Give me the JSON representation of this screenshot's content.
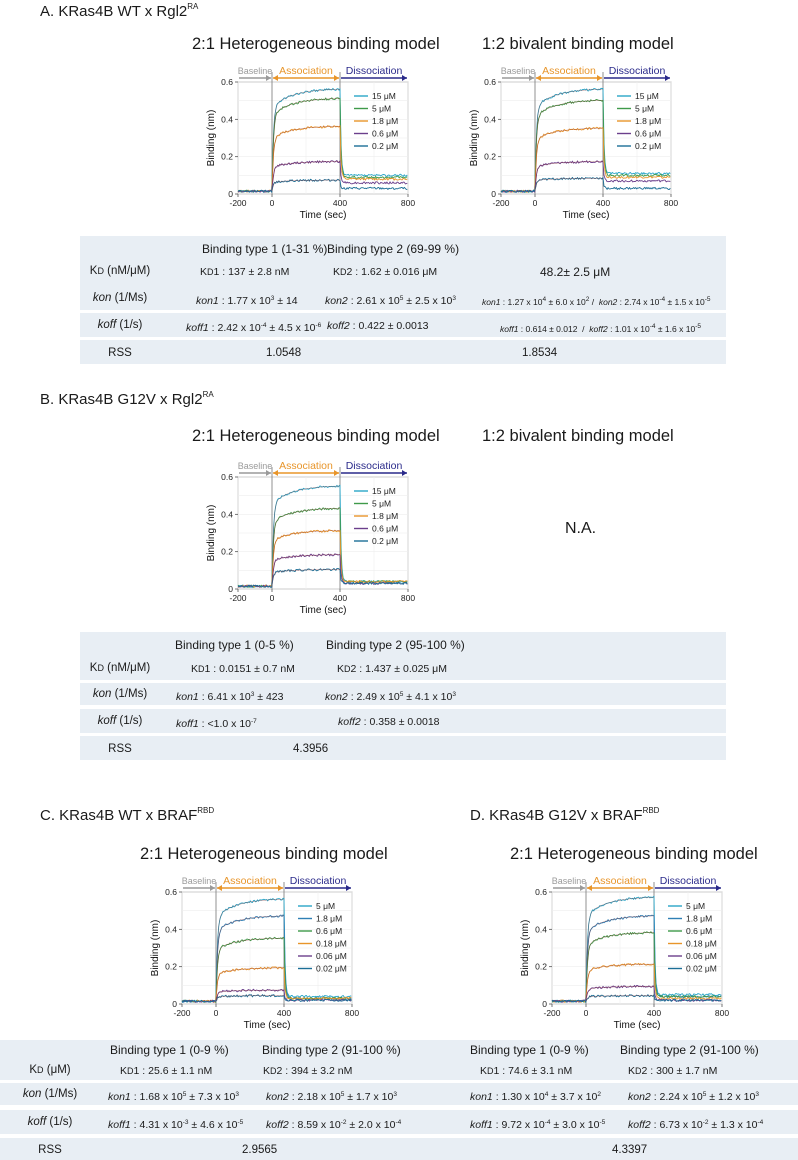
{
  "panels": [
    {
      "id": "A",
      "title": "A. KRas4B WT x Rgl2",
      "title_sup": "RA",
      "models": [
        "2:1 Heterogeneous binding model",
        "1:2 bivalent binding model"
      ],
      "na_text": "",
      "table": {
        "headers": [
          "Binding type 1 (1-31 %)",
          "Binding type 2 (69-99 %)"
        ],
        "rows": [
          {
            "label": "KD (nM/μM)",
            "cells": [
              "KD1 : 137 ± 2.8 nM",
              "KD2 : 1.62 ± 0.016 μM",
              "48.2± 2.5 μM"
            ]
          },
          {
            "label": "kon (1/Ms)",
            "cells": [
              "kon1 : 1.77 x 10³ ± 14",
              "kon2 : 2.61 x 10⁵ ± 2.5 x 10³",
              "kon1 : 1.27 x 10⁴ ± 6.0 x 10² /  kon2 : 2.74 x 10⁻⁴ ± 1.5 x 10⁻⁵"
            ]
          },
          {
            "label": "koff (1/s)",
            "cells": [
              "koff1 : 2.42 x 10⁻⁴ ± 4.5 x 10⁻⁶",
              "koff2 : 0.422 ± 0.0013",
              "koff1 : 0.614 ± 0.012  /  koff2 : 1.01 x 10⁻⁴ ± 1.6 x 10⁻⁵"
            ]
          },
          {
            "label": "RSS",
            "cells": [
              "1.0548",
              "1.8534"
            ]
          }
        ]
      }
    },
    {
      "id": "B",
      "title": "B. KRas4B G12V x Rgl2",
      "title_sup": "RA",
      "models": [
        "2:1 Heterogeneous binding model",
        "1:2 bivalent binding model"
      ],
      "na_text": "N.A.",
      "table": {
        "headers": [
          "Binding type 1 (0-5 %)",
          "Binding type 2 (95-100 %)"
        ],
        "rows": [
          {
            "label": "KD (nM/μM)",
            "cells": [
              "KD1 : 0.0151 ± 0.7 nM",
              "KD2 : 1.437 ± 0.025 μM"
            ]
          },
          {
            "label": "kon (1/Ms)",
            "cells": [
              "kon1 : 6.41 x 10³ ± 423",
              "kon2 : 2.49 x 10⁵ ± 4.1 x 10³"
            ]
          },
          {
            "label": "koff (1/s)",
            "cells": [
              "koff1 : <1.0 x 10⁻⁷",
              "koff2 : 0.358 ± 0.0018"
            ]
          },
          {
            "label": "RSS",
            "cells": [
              "4.3956"
            ]
          }
        ]
      }
    },
    {
      "id": "C",
      "title": "C. KRas4B WT x BRAF",
      "title_sup": "RBD",
      "models": [
        "2:1 Heterogeneous binding model"
      ],
      "table": {
        "headers": [
          "Binding type 1 (0-9 %)",
          "Binding type 2 (91-100 %)"
        ],
        "rows": [
          {
            "label": "KD (μM)",
            "cells": [
              "KD1 : 25.6 ± 1.1 nM",
              "KD2 : 394 ± 3.2 nM"
            ]
          },
          {
            "label": "kon (1/Ms)",
            "cells": [
              "kon1 : 1.68 x 10⁵ ± 7.3 x 10³",
              "kon2 : 2.18 x 10⁵ ± 1.7 x 10³"
            ]
          },
          {
            "label": "koff (1/s)",
            "cells": [
              "koff1 : 4.31 x 10⁻³ ± 4.6 x 10⁻⁵",
              "koff2 : 8.59 x 10⁻² ± 2.0 x 10⁻⁴"
            ]
          },
          {
            "label": "RSS",
            "cells": [
              "2.9565"
            ]
          }
        ]
      }
    },
    {
      "id": "D",
      "title": "D. KRas4B G12V x BRAF",
      "title_sup": "RBD",
      "models": [
        "2:1 Heterogeneous binding model"
      ],
      "table": {
        "headers": [
          "Binding type 1 (0-9 %)",
          "Binding type 2 (91-100 %)"
        ],
        "rows": [
          {
            "label": "",
            "cells": [
              "KD1 : 74.6 ± 3.1 nM",
              "KD2 : 300 ± 1.7 nM"
            ]
          },
          {
            "label": "",
            "cells": [
              "kon1 : 1.30 x 10⁴ ± 3.7 x 10²",
              "kon2 : 2.24 x 10⁵ ± 1.2 x 10³"
            ]
          },
          {
            "label": "",
            "cells": [
              "koff1 : 9.72 x 10⁻⁴ ± 3.0 x 10⁻⁵",
              "koff2 : 6.73 x 10⁻² ± 1.3 x 10⁻⁴"
            ]
          },
          {
            "label": "",
            "cells": [
              "4.3397"
            ]
          }
        ]
      }
    }
  ],
  "chart_data": [
    {
      "type": "line",
      "panel": "A",
      "model": "2:1 Heterogeneous binding model",
      "xlabel": "Time (sec)",
      "ylabel": "Binding (nm)",
      "xlim": [
        -200,
        800
      ],
      "ylim": [
        0,
        0.6
      ],
      "xticks": [
        "-200",
        "0",
        "400",
        "800"
      ],
      "yticks": [
        "0",
        "0.2",
        "0.4",
        "0.6"
      ],
      "phases": [
        "Baseline",
        "Association",
        "Dissociation"
      ],
      "legend_position": "right",
      "series": [
        {
          "name": "15 μM",
          "color": "#2aa6c8",
          "plateau": 0.55,
          "end_assoc": 0.55,
          "end": 0.1
        },
        {
          "name": "5 μM",
          "color": "#3f9a4a",
          "plateau": 0.5,
          "end_assoc": 0.5,
          "end": 0.09
        },
        {
          "name": "1.8 μM",
          "color": "#e8952a",
          "plateau": 0.35,
          "end_assoc": 0.35,
          "end": 0.08
        },
        {
          "name": "0.6 μM",
          "color": "#6b3f8c",
          "plateau": 0.16,
          "end_assoc": 0.16,
          "end": 0.06
        },
        {
          "name": "0.2 μM",
          "color": "#1b6e96",
          "plateau": 0.06,
          "end_assoc": 0.06,
          "end": 0.03
        }
      ]
    },
    {
      "type": "line",
      "panel": "A",
      "model": "1:2 bivalent binding model",
      "xlabel": "Time (sec)",
      "ylabel": "Binding (nm)",
      "xlim": [
        -200,
        800
      ],
      "ylim": [
        0,
        0.6
      ],
      "xticks": [
        "-200",
        "0",
        "400",
        "800"
      ],
      "yticks": [
        "0",
        "0.2",
        "0.4",
        "0.6"
      ],
      "phases": [
        "Baseline",
        "Association",
        "Dissociation"
      ],
      "legend_position": "right",
      "series": [
        {
          "name": "15 μM",
          "color": "#2aa6c8",
          "plateau": 0.55,
          "end_assoc": 0.55,
          "end": 0.11
        },
        {
          "name": "5 μM",
          "color": "#3f9a4a",
          "plateau": 0.49,
          "end_assoc": 0.49,
          "end": 0.1
        },
        {
          "name": "1.8 μM",
          "color": "#e8952a",
          "plateau": 0.34,
          "end_assoc": 0.34,
          "end": 0.09
        },
        {
          "name": "0.6 μM",
          "color": "#6b3f8c",
          "plateau": 0.16,
          "end_assoc": 0.16,
          "end": 0.07
        },
        {
          "name": "0.2 μM",
          "color": "#1b6e96",
          "plateau": 0.07,
          "end_assoc": 0.07,
          "end": 0.03
        }
      ]
    },
    {
      "type": "line",
      "panel": "B",
      "model": "2:1 Heterogeneous binding model",
      "xlabel": "Time (sec)",
      "ylabel": "Binding (nm)",
      "xlim": [
        -200,
        800
      ],
      "ylim": [
        0,
        0.6
      ],
      "xticks": [
        "-200",
        "0",
        "400",
        "800"
      ],
      "yticks": [
        "0",
        "0.2",
        "0.4",
        "0.6"
      ],
      "phases": [
        "Baseline",
        "Association",
        "Dissociation"
      ],
      "legend_position": "right",
      "series": [
        {
          "name": "15 μM",
          "color": "#2aa6c8",
          "plateau": 0.54,
          "end_assoc": 0.54,
          "end": 0.04
        },
        {
          "name": "5 μM",
          "color": "#3f9a4a",
          "plateau": 0.42,
          "end_assoc": 0.42,
          "end": 0.04
        },
        {
          "name": "1.8 μM",
          "color": "#e8952a",
          "plateau": 0.3,
          "end_assoc": 0.3,
          "end": 0.04
        },
        {
          "name": "0.6 μM",
          "color": "#6b3f8c",
          "plateau": 0.17,
          "end_assoc": 0.17,
          "end": 0.03
        },
        {
          "name": "0.2 μM",
          "color": "#1b6e96",
          "plateau": 0.09,
          "end_assoc": 0.09,
          "end": 0.03
        }
      ]
    },
    {
      "type": "line",
      "panel": "C",
      "model": "2:1 Heterogeneous binding model",
      "xlabel": "Time (sec)",
      "ylabel": "Binding (nm)",
      "xlim": [
        -200,
        800
      ],
      "ylim": [
        0,
        0.6
      ],
      "xticks": [
        "-200",
        "0",
        "400",
        "800"
      ],
      "yticks": [
        "0",
        "0.2",
        "0.4",
        "0.6"
      ],
      "phases": [
        "Baseline",
        "Association",
        "Dissociation"
      ],
      "legend_position": "right",
      "series": [
        {
          "name": "5 μM",
          "color": "#2aa6c8",
          "plateau": 0.55,
          "end_assoc": 0.55,
          "end": 0.04
        },
        {
          "name": "1.8 μM",
          "color": "#2f7fb5",
          "plateau": 0.46,
          "end_assoc": 0.46,
          "end": 0.03
        },
        {
          "name": "0.6 μM",
          "color": "#3f9a4a",
          "plateau": 0.34,
          "end_assoc": 0.34,
          "end": 0.03
        },
        {
          "name": "0.18 μM",
          "color": "#e8952a",
          "plateau": 0.18,
          "end_assoc": 0.18,
          "end": 0.03
        },
        {
          "name": "0.06 μM",
          "color": "#6b3f8c",
          "plateau": 0.06,
          "end_assoc": 0.06,
          "end": 0.02
        },
        {
          "name": "0.02 μM",
          "color": "#1b6e96",
          "plateau": 0.03,
          "end_assoc": 0.03,
          "end": 0.02
        }
      ]
    },
    {
      "type": "line",
      "panel": "D",
      "model": "2:1 Heterogeneous binding model",
      "xlabel": "Time (sec)",
      "ylabel": "Binding (nm)",
      "xlim": [
        -200,
        800
      ],
      "ylim": [
        0,
        0.6
      ],
      "xticks": [
        "-200",
        "0",
        "400",
        "800"
      ],
      "yticks": [
        "0",
        "0.2",
        "0.4",
        "0.6"
      ],
      "phases": [
        "Baseline",
        "Association",
        "Dissociation"
      ],
      "legend_position": "right",
      "series": [
        {
          "name": "5 μM",
          "color": "#2aa6c8",
          "plateau": 0.56,
          "end_assoc": 0.56,
          "end": 0.05
        },
        {
          "name": "1.8 μM",
          "color": "#2f7fb5",
          "plateau": 0.46,
          "end_assoc": 0.46,
          "end": 0.04
        },
        {
          "name": "0.6 μM",
          "color": "#3f9a4a",
          "plateau": 0.37,
          "end_assoc": 0.37,
          "end": 0.04
        },
        {
          "name": "0.18 μM",
          "color": "#e8952a",
          "plateau": 0.2,
          "end_assoc": 0.2,
          "end": 0.03
        },
        {
          "name": "0.06 μM",
          "color": "#6b3f8c",
          "plateau": 0.08,
          "end_assoc": 0.08,
          "end": 0.02
        },
        {
          "name": "0.02 μM",
          "color": "#1b6e96",
          "plateau": 0.03,
          "end_assoc": 0.03,
          "end": 0.02
        }
      ]
    }
  ]
}
